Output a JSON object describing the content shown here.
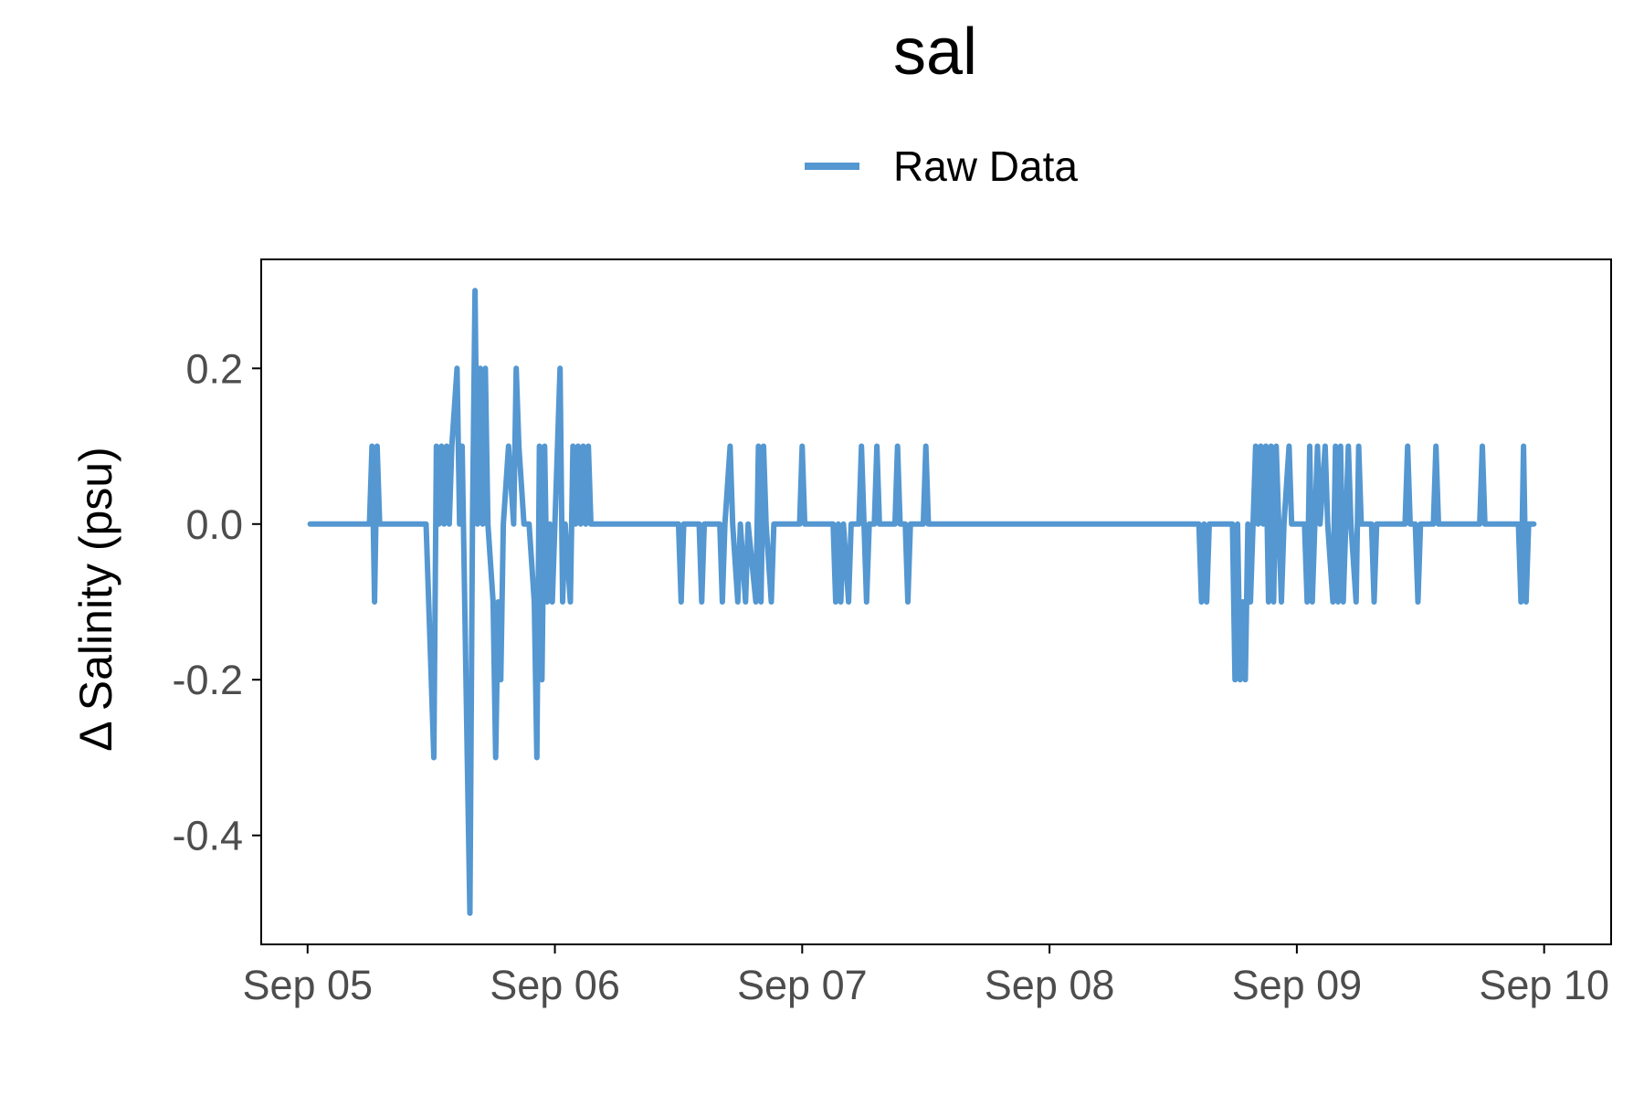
{
  "chart_data": {
    "type": "line",
    "title": "sal",
    "ylabel": "Δ Salinity (psu)",
    "xlabel": "",
    "legend": {
      "position": "top",
      "entries": [
        "Raw Data"
      ]
    },
    "grid": false,
    "colors": {
      "series": "#5497d1",
      "axis": "#000000",
      "tick_text": "#4d4d4d"
    },
    "x_ticks": [
      {
        "value": "2021-09-05",
        "label": "Sep 05"
      },
      {
        "value": "2021-09-06",
        "label": "Sep 06"
      },
      {
        "value": "2021-09-07",
        "label": "Sep 07"
      },
      {
        "value": "2021-09-08",
        "label": "Sep 08"
      },
      {
        "value": "2021-09-09",
        "label": "Sep 09"
      },
      {
        "value": "2021-09-10",
        "label": "Sep 10"
      }
    ],
    "y_ticks": [
      {
        "value": 0.2,
        "label": "0.2"
      },
      {
        "value": 0.0,
        "label": "0.0"
      },
      {
        "value": -0.2,
        "label": "-0.2"
      },
      {
        "value": -0.4,
        "label": "-0.4"
      }
    ],
    "xlim": [
      "2021-09-04 19:30",
      "2021-09-10 06:30"
    ],
    "ylim": [
      -0.54,
      0.34
    ],
    "series": [
      {
        "name": "Raw Data",
        "points": [
          [
            "2021-09-05 00:15",
            0.0
          ],
          [
            "2021-09-05 06:00",
            0.0
          ],
          [
            "2021-09-05 06:15",
            0.1
          ],
          [
            "2021-09-05 06:30",
            -0.1
          ],
          [
            "2021-09-05 06:45",
            0.1
          ],
          [
            "2021-09-05 07:00",
            0.0
          ],
          [
            "2021-09-05 11:30",
            0.0
          ],
          [
            "2021-09-05 12:00",
            -0.2
          ],
          [
            "2021-09-05 12:15",
            -0.3
          ],
          [
            "2021-09-05 12:30",
            0.1
          ],
          [
            "2021-09-05 12:45",
            0.0
          ],
          [
            "2021-09-05 13:00",
            0.1
          ],
          [
            "2021-09-05 13:15",
            0.0
          ],
          [
            "2021-09-05 13:30",
            0.1
          ],
          [
            "2021-09-05 13:45",
            0.0
          ],
          [
            "2021-09-05 14:00",
            0.1
          ],
          [
            "2021-09-05 14:30",
            0.2
          ],
          [
            "2021-09-05 14:45",
            0.0
          ],
          [
            "2021-09-05 15:00",
            0.1
          ],
          [
            "2021-09-05 15:30",
            -0.3
          ],
          [
            "2021-09-05 15:45",
            -0.5
          ],
          [
            "2021-09-05 16:00",
            0.0
          ],
          [
            "2021-09-05 16:15",
            0.3
          ],
          [
            "2021-09-05 16:30",
            0.0
          ],
          [
            "2021-09-05 16:45",
            0.2
          ],
          [
            "2021-09-05 17:00",
            0.0
          ],
          [
            "2021-09-05 17:15",
            0.2
          ],
          [
            "2021-09-05 17:30",
            0.0
          ],
          [
            "2021-09-05 18:00",
            -0.1
          ],
          [
            "2021-09-05 18:15",
            -0.3
          ],
          [
            "2021-09-05 18:30",
            -0.1
          ],
          [
            "2021-09-05 18:45",
            -0.2
          ],
          [
            "2021-09-05 19:00",
            0.0
          ],
          [
            "2021-09-05 19:30",
            0.1
          ],
          [
            "2021-09-05 20:00",
            0.0
          ],
          [
            "2021-09-05 20:15",
            0.2
          ],
          [
            "2021-09-05 20:30",
            0.1
          ],
          [
            "2021-09-05 21:00",
            0.0
          ],
          [
            "2021-09-05 21:30",
            0.0
          ],
          [
            "2021-09-05 22:00",
            -0.1
          ],
          [
            "2021-09-05 22:15",
            -0.3
          ],
          [
            "2021-09-05 22:30",
            0.1
          ],
          [
            "2021-09-05 22:45",
            -0.2
          ],
          [
            "2021-09-05 23:00",
            0.1
          ],
          [
            "2021-09-05 23:15",
            -0.1
          ],
          [
            "2021-09-05 23:30",
            0.0
          ],
          [
            "2021-09-05 23:45",
            -0.1
          ],
          [
            "2021-09-06 00:15",
            0.1
          ],
          [
            "2021-09-06 00:30",
            0.2
          ],
          [
            "2021-09-06 00:45",
            -0.1
          ],
          [
            "2021-09-06 01:00",
            0.0
          ],
          [
            "2021-09-06 01:30",
            -0.1
          ],
          [
            "2021-09-06 01:45",
            0.1
          ],
          [
            "2021-09-06 02:00",
            0.0
          ],
          [
            "2021-09-06 02:15",
            0.1
          ],
          [
            "2021-09-06 02:30",
            0.0
          ],
          [
            "2021-09-06 02:45",
            0.1
          ],
          [
            "2021-09-06 03:00",
            0.0
          ],
          [
            "2021-09-06 03:15",
            0.1
          ],
          [
            "2021-09-06 03:30",
            0.0
          ],
          [
            "2021-09-06 12:00",
            0.0
          ],
          [
            "2021-09-06 12:15",
            -0.1
          ],
          [
            "2021-09-06 12:30",
            0.0
          ],
          [
            "2021-09-06 14:00",
            0.0
          ],
          [
            "2021-09-06 14:15",
            -0.1
          ],
          [
            "2021-09-06 14:30",
            0.0
          ],
          [
            "2021-09-06 16:00",
            0.0
          ],
          [
            "2021-09-06 16:15",
            -0.1
          ],
          [
            "2021-09-06 16:30",
            0.0
          ],
          [
            "2021-09-06 17:00",
            0.1
          ],
          [
            "2021-09-06 17:15",
            0.0
          ],
          [
            "2021-09-06 17:45",
            -0.1
          ],
          [
            "2021-09-06 18:00",
            0.0
          ],
          [
            "2021-09-06 18:30",
            -0.1
          ],
          [
            "2021-09-06 18:45",
            0.0
          ],
          [
            "2021-09-06 19:30",
            -0.1
          ],
          [
            "2021-09-06 19:45",
            0.1
          ],
          [
            "2021-09-06 20:00",
            -0.1
          ],
          [
            "2021-09-06 20:15",
            0.1
          ],
          [
            "2021-09-06 20:30",
            0.0
          ],
          [
            "2021-09-06 21:00",
            -0.1
          ],
          [
            "2021-09-06 21:15",
            0.0
          ],
          [
            "2021-09-06 23:45",
            0.0
          ],
          [
            "2021-09-07 00:00",
            0.1
          ],
          [
            "2021-09-07 00:15",
            0.0
          ],
          [
            "2021-09-07 03:00",
            0.0
          ],
          [
            "2021-09-07 03:15",
            -0.1
          ],
          [
            "2021-09-07 03:30",
            0.0
          ],
          [
            "2021-09-07 03:45",
            -0.1
          ],
          [
            "2021-09-07 04:00",
            0.0
          ],
          [
            "2021-09-07 04:30",
            -0.1
          ],
          [
            "2021-09-07 04:45",
            0.0
          ],
          [
            "2021-09-07 05:30",
            0.0
          ],
          [
            "2021-09-07 05:45",
            0.1
          ],
          [
            "2021-09-07 06:00",
            0.0
          ],
          [
            "2021-09-07 06:15",
            -0.1
          ],
          [
            "2021-09-07 06:30",
            0.0
          ],
          [
            "2021-09-07 07:00",
            0.0
          ],
          [
            "2021-09-07 07:15",
            0.1
          ],
          [
            "2021-09-07 07:30",
            0.0
          ],
          [
            "2021-09-07 09:00",
            0.0
          ],
          [
            "2021-09-07 09:15",
            0.1
          ],
          [
            "2021-09-07 09:30",
            0.0
          ],
          [
            "2021-09-07 10:00",
            0.0
          ],
          [
            "2021-09-07 10:15",
            -0.1
          ],
          [
            "2021-09-07 10:30",
            0.0
          ],
          [
            "2021-09-07 11:45",
            0.0
          ],
          [
            "2021-09-07 12:00",
            0.1
          ],
          [
            "2021-09-07 12:15",
            0.0
          ],
          [
            "2021-09-08 14:30",
            0.0
          ],
          [
            "2021-09-08 14:45",
            -0.1
          ],
          [
            "2021-09-08 15:00",
            0.0
          ],
          [
            "2021-09-08 15:15",
            -0.1
          ],
          [
            "2021-09-08 15:30",
            0.0
          ],
          [
            "2021-09-08 17:45",
            0.0
          ],
          [
            "2021-09-08 18:00",
            -0.2
          ],
          [
            "2021-09-08 18:15",
            0.0
          ],
          [
            "2021-09-08 18:30",
            -0.2
          ],
          [
            "2021-09-08 18:45",
            -0.1
          ],
          [
            "2021-09-08 19:00",
            -0.2
          ],
          [
            "2021-09-08 19:15",
            0.0
          ],
          [
            "2021-09-08 19:30",
            -0.1
          ],
          [
            "2021-09-08 20:00",
            0.1
          ],
          [
            "2021-09-08 20:15",
            0.0
          ],
          [
            "2021-09-08 20:30",
            0.1
          ],
          [
            "2021-09-08 20:45",
            0.0
          ],
          [
            "2021-09-08 21:00",
            0.1
          ],
          [
            "2021-09-08 21:15",
            -0.1
          ],
          [
            "2021-09-08 21:30",
            0.1
          ],
          [
            "2021-09-08 21:45",
            -0.1
          ],
          [
            "2021-09-08 22:00",
            0.1
          ],
          [
            "2021-09-08 22:15",
            0.0
          ],
          [
            "2021-09-08 22:30",
            -0.1
          ],
          [
            "2021-09-08 22:45",
            0.0
          ],
          [
            "2021-09-08 23:15",
            0.1
          ],
          [
            "2021-09-08 23:30",
            0.0
          ],
          [
            "2021-09-09 00:45",
            0.0
          ],
          [
            "2021-09-09 01:00",
            -0.1
          ],
          [
            "2021-09-09 01:15",
            0.1
          ],
          [
            "2021-09-09 01:30",
            -0.1
          ],
          [
            "2021-09-09 01:45",
            0.0
          ],
          [
            "2021-09-09 02:00",
            0.1
          ],
          [
            "2021-09-09 02:15",
            0.0
          ],
          [
            "2021-09-09 02:45",
            0.1
          ],
          [
            "2021-09-09 03:00",
            0.0
          ],
          [
            "2021-09-09 03:30",
            -0.1
          ],
          [
            "2021-09-09 03:45",
            0.1
          ],
          [
            "2021-09-09 04:00",
            -0.1
          ],
          [
            "2021-09-09 04:15",
            0.1
          ],
          [
            "2021-09-09 04:30",
            -0.1
          ],
          [
            "2021-09-09 04:45",
            0.0
          ],
          [
            "2021-09-09 05:00",
            0.1
          ],
          [
            "2021-09-09 05:15",
            0.0
          ],
          [
            "2021-09-09 05:45",
            -0.1
          ],
          [
            "2021-09-09 06:00",
            0.1
          ],
          [
            "2021-09-09 06:15",
            0.0
          ],
          [
            "2021-09-09 07:15",
            0.0
          ],
          [
            "2021-09-09 07:30",
            -0.1
          ],
          [
            "2021-09-09 07:45",
            0.0
          ],
          [
            "2021-09-09 10:30",
            0.0
          ],
          [
            "2021-09-09 10:45",
            0.1
          ],
          [
            "2021-09-09 11:00",
            0.0
          ],
          [
            "2021-09-09 11:30",
            0.0
          ],
          [
            "2021-09-09 11:45",
            -0.1
          ],
          [
            "2021-09-09 12:00",
            0.0
          ],
          [
            "2021-09-09 13:15",
            0.0
          ],
          [
            "2021-09-09 13:30",
            0.1
          ],
          [
            "2021-09-09 13:45",
            0.0
          ],
          [
            "2021-09-09 17:45",
            0.0
          ],
          [
            "2021-09-09 18:00",
            0.1
          ],
          [
            "2021-09-09 18:15",
            0.0
          ],
          [
            "2021-09-09 21:30",
            0.0
          ],
          [
            "2021-09-09 21:45",
            -0.1
          ],
          [
            "2021-09-09 22:00",
            0.1
          ],
          [
            "2021-09-09 22:15",
            -0.1
          ],
          [
            "2021-09-09 22:30",
            0.0
          ],
          [
            "2021-09-09 23:00",
            0.0
          ]
        ]
      }
    ]
  }
}
